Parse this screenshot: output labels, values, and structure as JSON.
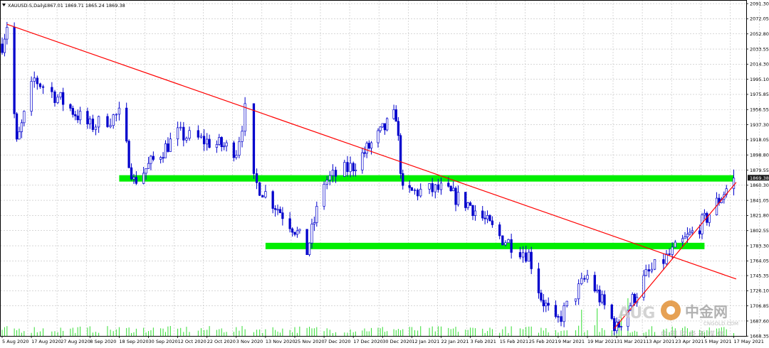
{
  "header": {
    "symbol": "XAUUSD-S,Daily",
    "ohlc": "1867.01 1869.71 1865.24 1869.38"
  },
  "current_price_label": "1869.38",
  "watermark": {
    "aug": "AUG",
    "brand": "中金网",
    "site": "CNGOLD.COM",
    "slogan": "中 国 财 经 新 媒 体"
  },
  "colors": {
    "candle": "#0000cc",
    "trendline": "#ff0000",
    "zone": "#00ee00",
    "volume": "#33dd33",
    "grid": "#c0c0c0",
    "price_box": "#1a1a1a"
  },
  "chart_data": {
    "type": "candlestick",
    "symbol": "XAUUSD-S",
    "timeframe": "Daily",
    "title": "XAUUSD-S,Daily",
    "ylim": [
      1668.6,
      2095
    ],
    "y_ticks": [
      2091.3,
      2072.05,
      2052.8,
      2033.55,
      2014.3,
      1995.1,
      1975.85,
      1956.55,
      1937.3,
      1918.05,
      1898.8,
      1879.55,
      1860.3,
      1841.05,
      1821.8,
      1802.55,
      1783.3,
      1764.05,
      1745.35,
      1726.1,
      1706.85,
      1687.6,
      1668.35
    ],
    "x_ticks": [
      "5 Aug 2020",
      "17 Aug 2020",
      "27 Aug 2020",
      "8 Sep 2020",
      "18 Sep 2020",
      "30 Sep 2020",
      "12 Oct 2020",
      "22 Oct 2020",
      "3 Nov 2020",
      "13 Nov 2020",
      "25 Nov 2020",
      "7 Dec 2020",
      "17 Dec 2020",
      "30 Dec 2020",
      "12 Jan 2021",
      "22 Jan 2021",
      "3 Feb 2021",
      "15 Feb 2021",
      "25 Feb 2021",
      "9 Mar 2021",
      "19 Mar 2021",
      "31 Mar 2021",
      "13 Apr 2021",
      "23 Apr 2021",
      "5 May 2021",
      "17 May 2021"
    ],
    "last_price": 1869.38,
    "key_points": [
      {
        "date": "5 Aug 2020",
        "close": 2040
      },
      {
        "date": "7 Aug 2020",
        "close": 2065
      },
      {
        "date": "11 Aug 2020",
        "close": 1912
      },
      {
        "date": "18 Aug 2020",
        "close": 1995
      },
      {
        "date": "8 Sep 2020",
        "close": 1935
      },
      {
        "date": "18 Sep 2020",
        "close": 1950
      },
      {
        "date": "24 Sep 2020",
        "close": 1865
      },
      {
        "date": "12 Oct 2020",
        "close": 1925
      },
      {
        "date": "3 Nov 2020",
        "close": 1905
      },
      {
        "date": "6 Nov 2020",
        "close": 1955
      },
      {
        "date": "9 Nov 2020",
        "close": 1865
      },
      {
        "date": "25 Nov 2020",
        "close": 1805
      },
      {
        "date": "30 Nov 2020",
        "close": 1776
      },
      {
        "date": "7 Dec 2020",
        "close": 1865
      },
      {
        "date": "17 Dec 2020",
        "close": 1885
      },
      {
        "date": "5 Jan 2021",
        "close": 1950
      },
      {
        "date": "8 Jan 2021",
        "close": 1850
      },
      {
        "date": "22 Jan 2021",
        "close": 1855
      },
      {
        "date": "3 Feb 2021",
        "close": 1835
      },
      {
        "date": "15 Feb 2021",
        "close": 1795
      },
      {
        "date": "25 Feb 2021",
        "close": 1772
      },
      {
        "date": "2 Mar 2021",
        "close": 1718
      },
      {
        "date": "8 Mar 2021",
        "close": 1683
      },
      {
        "date": "19 Mar 2021",
        "close": 1745
      },
      {
        "date": "31 Mar 2021",
        "close": 1678
      },
      {
        "date": "13 Apr 2021",
        "close": 1745
      },
      {
        "date": "23 Apr 2021",
        "close": 1778
      },
      {
        "date": "5 May 2021",
        "close": 1815
      },
      {
        "date": "17 May 2021",
        "close": 1869.38
      }
    ],
    "horizontal_zones": [
      {
        "level": 1869,
        "from": "18 Sep 2020",
        "to": "17 May 2021"
      },
      {
        "level": 1783,
        "from": "13 Nov 2020",
        "to": "5 May 2021"
      }
    ],
    "trendlines": [
      {
        "from_date": "7 Aug 2020",
        "from": 2065,
        "to_date": "18 May 2021",
        "to": 1741
      },
      {
        "from_date": "30 Mar 2021",
        "from": 1678,
        "to_date": "18 May 2021",
        "to": 1864
      }
    ],
    "grid": true
  }
}
